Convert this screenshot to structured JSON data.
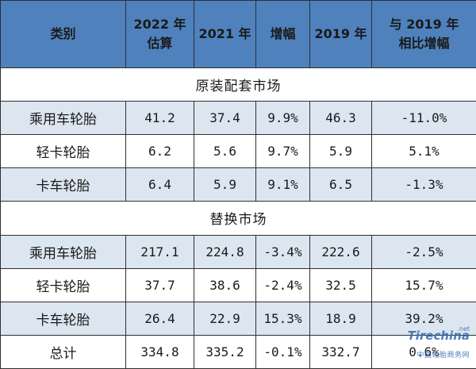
{
  "table": {
    "headers": {
      "category": "类别",
      "y2022": [
        "2022 年",
        "估算"
      ],
      "y2021": "2021 年",
      "growth": "增幅",
      "y2019": "2019 年",
      "vs2019": [
        "与 2019 年",
        "相比增幅"
      ]
    },
    "sections": [
      {
        "title": "原装配套市场",
        "rows": [
          {
            "name": "乘用车轮胎",
            "v2022": "41.2",
            "v2021": "37.4",
            "growth": "9.9%",
            "v2019": "46.3",
            "vs2019": "-11.0%"
          },
          {
            "name": "轻卡轮胎",
            "v2022": "6.2",
            "v2021": "5.6",
            "growth": "9.7%",
            "v2019": "5.9",
            "vs2019": "5.1%"
          },
          {
            "name": "卡车轮胎",
            "v2022": "6.4",
            "v2021": "5.9",
            "growth": "9.1%",
            "v2019": "6.5",
            "vs2019": "-1.3%"
          }
        ]
      },
      {
        "title": "替换市场",
        "rows": [
          {
            "name": "乘用车轮胎",
            "v2022": "217.1",
            "v2021": "224.8",
            "growth": "-3.4%",
            "v2019": "222.6",
            "vs2019": "-2.5%"
          },
          {
            "name": "轻卡轮胎",
            "v2022": "37.7",
            "v2021": "38.6",
            "growth": "-2.4%",
            "v2019": "32.5",
            "vs2019": "15.7%"
          },
          {
            "name": "卡车轮胎",
            "v2022": "26.4",
            "v2021": "22.9",
            "growth": "15.3%",
            "v2019": "18.9",
            "vs2019": "39.2%"
          },
          {
            "name": "总计",
            "v2022": "334.8",
            "v2021": "335.2",
            "growth": "-0.1%",
            "v2019": "332.7",
            "vs2019": "0.6%"
          }
        ]
      }
    ]
  },
  "watermark": {
    "brand": "Tirechina",
    "domain": ".net",
    "subtitle": "中国轮胎商务网"
  },
  "colors": {
    "header_bg": "#4f81bd",
    "shade_row_bg": "#dce6f1",
    "border": "#2f2f2f"
  }
}
